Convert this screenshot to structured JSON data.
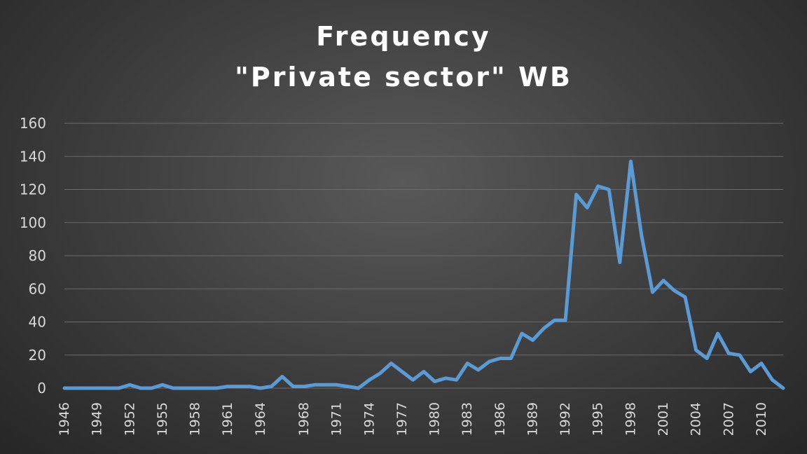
{
  "chart_data": {
    "type": "line",
    "title": "Frequency",
    "subtitle": "\"Private sector\" WB",
    "xlabel": "",
    "ylabel": "",
    "ylim": [
      0,
      160
    ],
    "yticks": [
      0,
      20,
      40,
      60,
      80,
      100,
      120,
      140,
      160
    ],
    "x_tick_labels": [
      "1946",
      "1949",
      "1952",
      "1955",
      "1958",
      "1961",
      "1964",
      "1968",
      "1971",
      "1974",
      "1977",
      "1980",
      "1983",
      "1986",
      "1989",
      "1992",
      "1995",
      "1998",
      "2001",
      "2004",
      "2007",
      "2010"
    ],
    "grid": true,
    "legend": "none",
    "line_color": "#5b9bd5",
    "x": [
      1946,
      1947,
      1948,
      1949,
      1950,
      1951,
      1952,
      1953,
      1954,
      1955,
      1956,
      1957,
      1958,
      1959,
      1960,
      1961,
      1962,
      1963,
      1964,
      1965,
      1966,
      1967,
      1968,
      1969,
      1970,
      1971,
      1972,
      1973,
      1974,
      1975,
      1976,
      1977,
      1978,
      1979,
      1980,
      1981,
      1982,
      1983,
      1984,
      1985,
      1986,
      1987,
      1988,
      1989,
      1990,
      1991,
      1992,
      1993,
      1994,
      1995,
      1996,
      1997,
      1998,
      1999,
      2000,
      2001,
      2002,
      2003,
      2004,
      2005,
      2006,
      2007,
      2008,
      2009,
      2010,
      2011,
      2012
    ],
    "values": [
      0,
      0,
      0,
      0,
      0,
      0,
      2,
      0,
      0,
      2,
      0,
      0,
      0,
      0,
      0,
      1,
      1,
      1,
      0,
      1,
      7,
      1,
      1,
      2,
      2,
      2,
      1,
      0,
      5,
      9,
      15,
      10,
      5,
      10,
      4,
      6,
      5,
      15,
      11,
      16,
      18,
      18,
      33,
      29,
      36,
      41,
      41,
      117,
      109,
      122,
      120,
      76,
      137,
      92,
      58,
      65,
      59,
      55,
      23,
      18,
      33,
      21,
      20,
      10,
      15,
      5,
      0
    ]
  }
}
